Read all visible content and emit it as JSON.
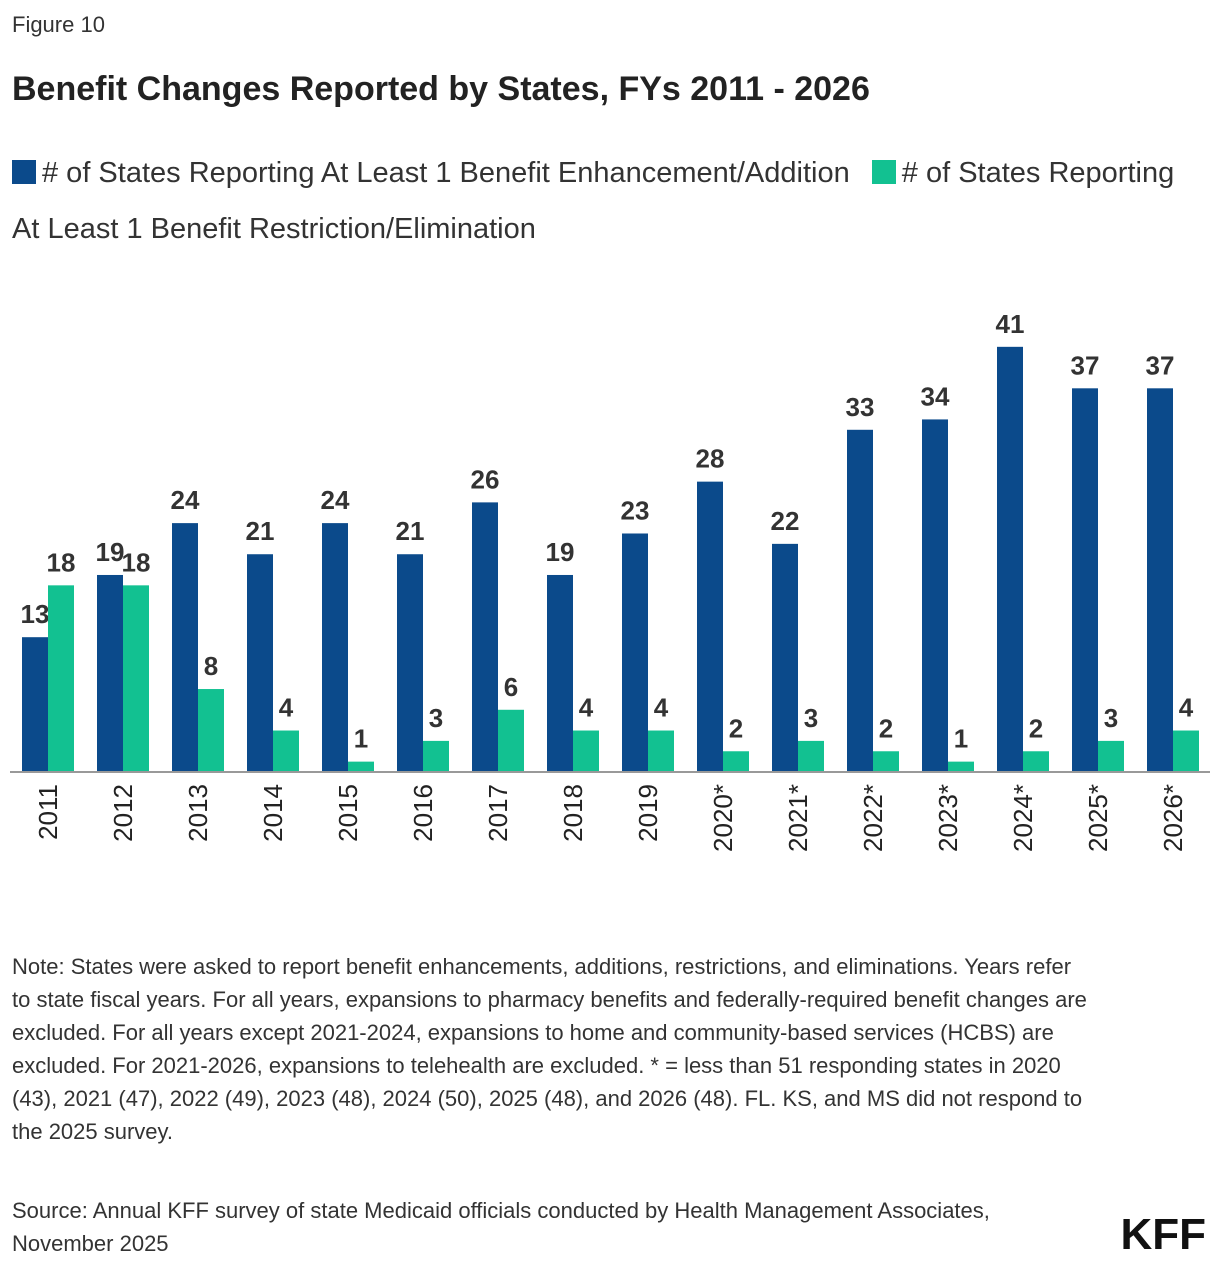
{
  "chart_data": {
    "type": "bar",
    "figure_label": "Figure 10",
    "title": "Benefit Changes Reported by States, FYs 2011 - 2026",
    "categories": [
      "2011",
      "2012",
      "2013",
      "2014",
      "2015",
      "2016",
      "2017",
      "2018",
      "2019",
      "2020*",
      "2021*",
      "2022*",
      "2023*",
      "2024*",
      "2025*",
      "2026*"
    ],
    "series": [
      {
        "name": "# of States Reporting At Least 1 Benefit Enhancement/Addition",
        "color": "#0b4a8b",
        "values": [
          13,
          19,
          24,
          21,
          24,
          21,
          26,
          19,
          23,
          28,
          22,
          33,
          34,
          41,
          37,
          37
        ]
      },
      {
        "name": "# of States Reporting At Least 1 Benefit Restriction/Elimination",
        "color": "#12c191",
        "values": [
          18,
          18,
          8,
          4,
          1,
          3,
          6,
          4,
          4,
          2,
          3,
          2,
          1,
          2,
          3,
          4
        ]
      }
    ],
    "note": "Note: States were asked to report benefit enhancements, additions, restrictions, and eliminations. Years refer to state fiscal years. For all years, expansions to pharmacy benefits and federally-required benefit changes are excluded. For all years except 2021-2024, expansions to home and community-based services (HCBS) are excluded. For 2021-2026, expansions to telehealth are excluded. * = less than 51 responding states in 2020 (43), 2021 (47), 2022 (49), 2023 (48), 2024 (50), 2025 (48), and 2026 (48). FL. KS, and MS did not respond to the 2025 survey.",
    "source": "Source: Annual KFF survey of state Medicaid officials conducted by Health Management Associates, November 2025",
    "logo": "KFF"
  }
}
